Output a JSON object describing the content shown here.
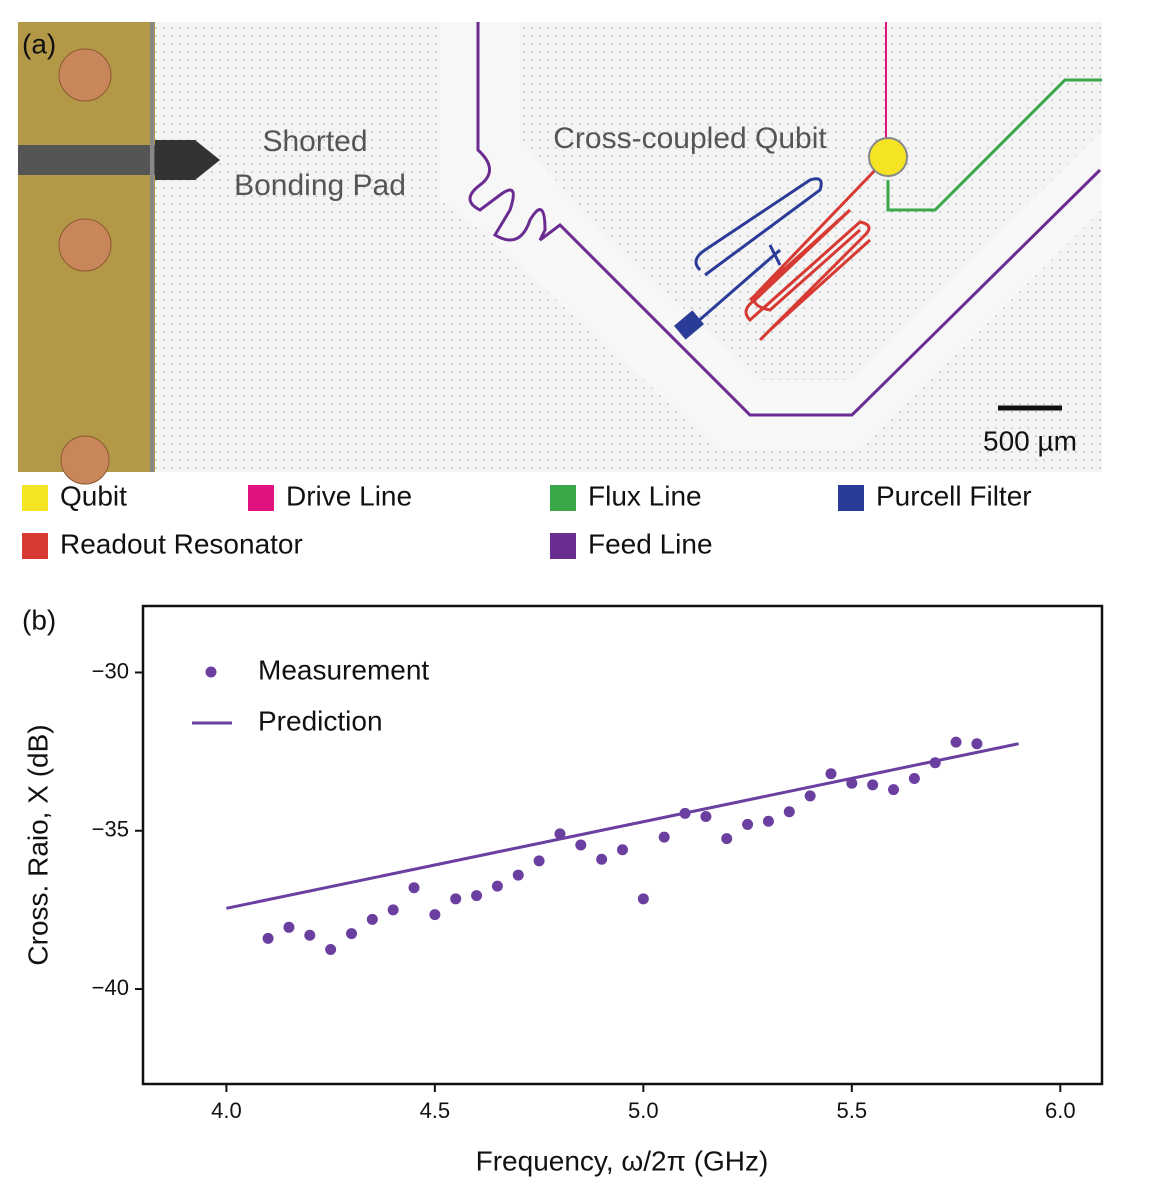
{
  "panel_a": {
    "label": "(a)",
    "pad_annotation": [
      "Shorted",
      "Bonding Pad"
    ],
    "qubit_annotation": "Cross-coupled Qubit",
    "scale_bar": "500 µm",
    "legend": [
      {
        "name": "Qubit",
        "color": "#f5e424"
      },
      {
        "name": "Drive Line",
        "color": "#e0127f"
      },
      {
        "name": "Flux Line",
        "color": "#3aa849"
      },
      {
        "name": "Purcell Filter",
        "color": "#2a3c98"
      },
      {
        "name": "Readout Resonator",
        "color": "#d63a33"
      },
      {
        "name": "Feed Line",
        "color": "#6a2c90"
      }
    ]
  },
  "chart_data": {
    "type": "scatter",
    "label": "(b)",
    "xlabel": "Frequency, ω/2π (GHz)",
    "ylabel": "Cross. Raio, X (dB)",
    "xlim": [
      3.8,
      6.1
    ],
    "ylim": [
      -43,
      -27.9
    ],
    "xticks": [
      {
        "value": 4,
        "label": "4.0"
      },
      4.5,
      {
        "value": 5,
        "label": "5.0"
      },
      5.5,
      {
        "value": 6,
        "label": "6.0"
      }
    ],
    "yticks": [
      {
        "value": -30,
        "label": "−30"
      },
      {
        "value": -35,
        "label": "−35"
      },
      {
        "value": -40,
        "label": "−40"
      }
    ],
    "legend_position": "upper left",
    "series": [
      {
        "name": "Measurement",
        "mode": "markers",
        "color": "#6b3fa0",
        "x": [
          4.1,
          4.15,
          4.2,
          4.25,
          4.3,
          4.35,
          4.4,
          4.45,
          4.5,
          4.55,
          4.6,
          4.65,
          4.7,
          4.75,
          4.8,
          4.85,
          4.9,
          4.95,
          5.0,
          5.05,
          5.1,
          5.15,
          5.2,
          5.25,
          5.3,
          5.35,
          5.4,
          5.45,
          5.5,
          5.55,
          5.6,
          5.65,
          5.7,
          5.75,
          5.8
        ],
        "values": [
          -38.4,
          -38.05,
          -38.3,
          -38.75,
          -38.25,
          -37.8,
          -37.5,
          -36.8,
          -37.65,
          -37.15,
          -37.05,
          -36.75,
          -36.4,
          -35.95,
          -35.1,
          -35.45,
          -35.9,
          -35.6,
          -37.15,
          -35.2,
          -34.45,
          -34.55,
          -35.25,
          -34.8,
          -34.7,
          -34.4,
          -33.9,
          -33.2,
          -33.5,
          -33.55,
          -33.7,
          -33.35,
          -32.85,
          -32.2,
          -32.25
        ]
      },
      {
        "name": "Prediction",
        "mode": "line",
        "color": "#6b3fa0",
        "x": [
          4.0,
          5.9
        ],
        "values": [
          -37.45,
          -32.25
        ]
      }
    ]
  }
}
